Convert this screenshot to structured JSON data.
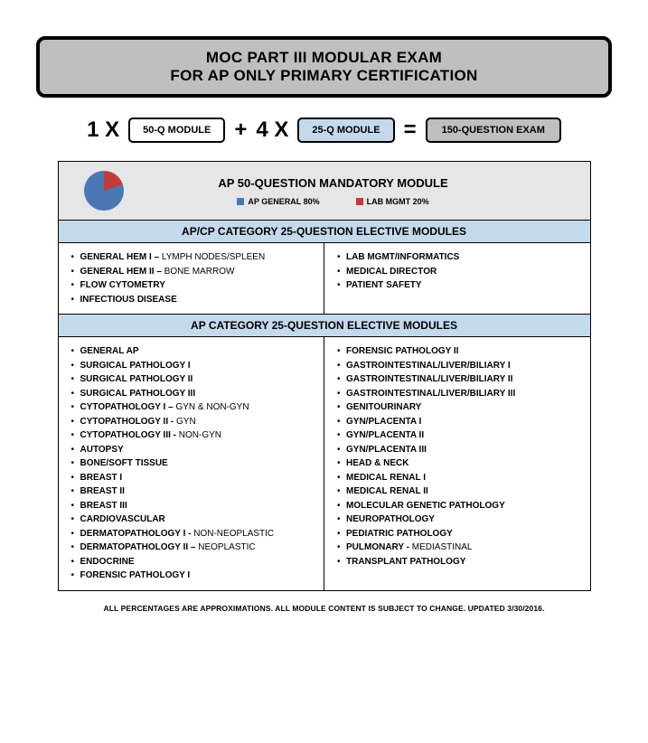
{
  "title": {
    "line1": "MOC PART III MODULAR EXAM",
    "line2": "FOR AP ONLY PRIMARY CERTIFICATION"
  },
  "formula": {
    "m1": "1 X",
    "box50": "50-Q MODULE",
    "plus": "+",
    "m2": "4 X",
    "box25": "25-Q MODULE",
    "eq": "=",
    "box150": "150-QUESTION EXAM"
  },
  "colors": {
    "title_bg": "#bfbfbf",
    "blue_bg": "#c5d9ed",
    "grey_bg": "#e6e6e6",
    "pie_blue": "#4a78b4",
    "pie_red": "#c13b3b"
  },
  "mandatory": {
    "title": "AP 50-QUESTION MANDATORY MODULE",
    "pie": {
      "blue_pct": 80,
      "red_pct": 20
    },
    "legend": [
      {
        "label": "AP GENERAL 80%",
        "color": "#4a78b4"
      },
      {
        "label": "LAB MGMT 20%",
        "color": "#c13b3b"
      }
    ]
  },
  "apcp": {
    "header": "AP/CP CATEGORY 25-QUESTION ELECTIVE MODULES",
    "left": [
      {
        "b": "GENERAL HEM I – ",
        "r": "LYMPH NODES/SPLEEN"
      },
      {
        "b": "GENERAL HEM II – ",
        "r": "BONE MARROW"
      },
      {
        "b": "FLOW CYTOMETRY",
        "r": ""
      },
      {
        "b": "INFECTIOUS DISEASE",
        "r": ""
      }
    ],
    "right": [
      {
        "b": "LAB MGMT/INFORMATICS",
        "r": ""
      },
      {
        "b": "MEDICAL DIRECTOR",
        "r": ""
      },
      {
        "b": "PATIENT SAFETY",
        "r": ""
      }
    ]
  },
  "ap": {
    "header": "AP CATEGORY 25-QUESTION ELECTIVE MODULES",
    "left": [
      {
        "b": "GENERAL AP",
        "r": ""
      },
      {
        "b": "SURGICAL PATHOLOGY I",
        "r": ""
      },
      {
        "b": "SURGICAL PATHOLOGY II",
        "r": ""
      },
      {
        "b": "SURGICAL PATHOLOGY III",
        "r": ""
      },
      {
        "b": "CYTOPATHOLOGY I – ",
        "r": "GYN & NON-GYN"
      },
      {
        "b": "CYTOPATHOLOGY II - ",
        "r": "GYN"
      },
      {
        "b": "CYTOPATHOLOGY III - ",
        "r": "NON-GYN"
      },
      {
        "b": "AUTOPSY",
        "r": ""
      },
      {
        "b": "BONE/SOFT TISSUE",
        "r": ""
      },
      {
        "b": "BREAST I",
        "r": ""
      },
      {
        "b": "BREAST II",
        "r": ""
      },
      {
        "b": "BREAST III",
        "r": ""
      },
      {
        "b": "CARDIOVASCULAR",
        "r": ""
      },
      {
        "b": "DERMATOPATHOLOGY I - ",
        "r": "NON-NEOPLASTIC"
      },
      {
        "b": "DERMATOPATHOLOGY II – ",
        "r": "NEOPLASTIC"
      },
      {
        "b": "ENDOCRINE",
        "r": ""
      },
      {
        "b": "FORENSIC PATHOLOGY I",
        "r": ""
      }
    ],
    "right": [
      {
        "b": "FORENSIC PATHOLOGY II",
        "r": ""
      },
      {
        "b": "GASTROINTESTINAL/LIVER/BILIARY I",
        "r": ""
      },
      {
        "b": "GASTROINTESTINAL/LIVER/BILIARY II",
        "r": ""
      },
      {
        "b": "GASTROINTESTINAL/LIVER/BILIARY III",
        "r": ""
      },
      {
        "b": "GENITOURINARY",
        "r": ""
      },
      {
        "b": "GYN/PLACENTA I",
        "r": ""
      },
      {
        "b": "GYN/PLACENTA II",
        "r": ""
      },
      {
        "b": "GYN/PLACENTA III",
        "r": ""
      },
      {
        "b": "HEAD & NECK",
        "r": ""
      },
      {
        "b": "MEDICAL RENAL I",
        "r": ""
      },
      {
        "b": "MEDICAL RENAL II",
        "r": ""
      },
      {
        "b": "MOLECULAR GENETIC PATHOLOGY",
        "r": ""
      },
      {
        "b": "NEUROPATHOLOGY",
        "r": ""
      },
      {
        "b": "PEDIATRIC PATHOLOGY",
        "r": ""
      },
      {
        "b": "PULMONARY - ",
        "r": "MEDIASTINAL"
      },
      {
        "b": "TRANSPLANT PATHOLOGY",
        "r": ""
      }
    ]
  },
  "footnote": "ALL PERCENTAGES ARE APPROXIMATIONS.  ALL MODULE CONTENT IS SUBJECT TO CHANGE.  UPDATED 3/30/2016."
}
